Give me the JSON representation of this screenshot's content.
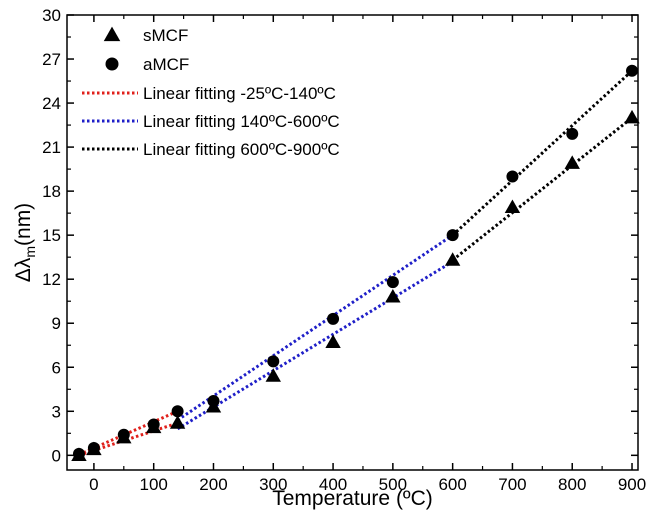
{
  "chart_data": {
    "type": "scatter",
    "xlabel": "Temperature (ºC)",
    "ylabel": {
      "delta": "Δ",
      "lambda": "λ",
      "sub": "m",
      "unit": "(nm)"
    },
    "xlim": [
      -45,
      910
    ],
    "ylim": [
      -1,
      30
    ],
    "xticks": [
      0,
      100,
      200,
      300,
      400,
      500,
      600,
      700,
      800,
      900
    ],
    "yticks": [
      0,
      3,
      6,
      9,
      12,
      15,
      18,
      21,
      24,
      27,
      30
    ],
    "grid": false,
    "legend_position": "top-left",
    "series": [
      {
        "name": "sMCF",
        "marker": "triangle",
        "color": "#000000",
        "x": [
          -25,
          0,
          50,
          100,
          140,
          200,
          300,
          400,
          500,
          600,
          700,
          800,
          900
        ],
        "y": [
          0.0,
          0.4,
          1.2,
          1.9,
          2.2,
          3.3,
          5.4,
          7.7,
          10.8,
          13.3,
          16.9,
          19.9,
          23.0
        ]
      },
      {
        "name": "aMCF",
        "marker": "circle",
        "color": "#000000",
        "x": [
          -25,
          0,
          50,
          100,
          140,
          200,
          300,
          400,
          500,
          600,
          700,
          800,
          900
        ],
        "y": [
          0.1,
          0.5,
          1.4,
          2.1,
          3.0,
          3.7,
          6.4,
          9.3,
          11.8,
          15.0,
          19.0,
          21.9,
          26.2
        ]
      }
    ],
    "fits": [
      {
        "name": "Linear fitting -25ºC-140ºC",
        "color": "#e0201b",
        "lines": [
          {
            "x": [
              -25,
              140
            ],
            "y": [
              0.0,
              2.2
            ]
          },
          {
            "x": [
              -25,
              140
            ],
            "y": [
              0.05,
              3.0
            ]
          }
        ]
      },
      {
        "name": "Linear fitting 140ºC-600ºC",
        "color": "#1f1fc8",
        "lines": [
          {
            "x": [
              140,
              600
            ],
            "y": [
              1.8,
              13.2
            ]
          },
          {
            "x": [
              140,
              600
            ],
            "y": [
              2.4,
              15.0
            ]
          }
        ]
      },
      {
        "name": "Linear fitting 600ºC-900ºC",
        "color": "#000000",
        "lines": [
          {
            "x": [
              600,
              900
            ],
            "y": [
              13.3,
              23.0
            ]
          },
          {
            "x": [
              600,
              900
            ],
            "y": [
              15.0,
              26.2
            ]
          }
        ]
      }
    ]
  }
}
